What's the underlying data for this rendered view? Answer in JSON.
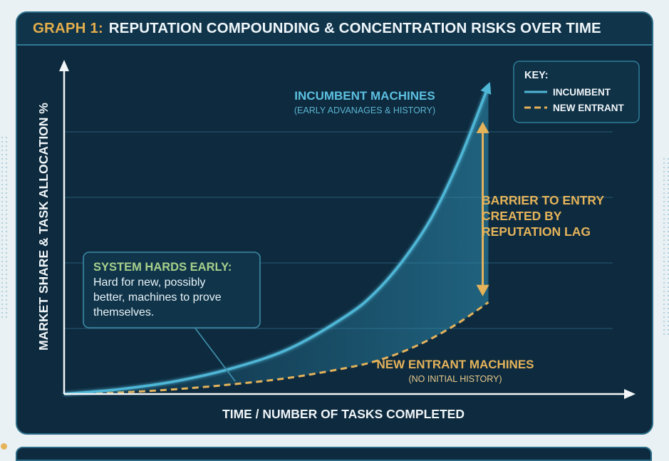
{
  "header": {
    "title_prefix": "GRAPH 1:",
    "title_main": "REPUTATION COMPOUNDING & CONCENTRATION RISKS OVER TIME"
  },
  "colors": {
    "background": "#0d2a3e",
    "incumbent": "#4fb6d6",
    "new_entrant": "#e5b35a",
    "barrier": "#e5b35a",
    "callout_title": "#a6d08a",
    "text": "#e9f3f7"
  },
  "chart_data": {
    "type": "line",
    "title": "REPUTATION COMPOUNDING & CONCENTRATION RISKS OVER TIME",
    "xlabel": "TIME / NUMBER OF TASKS COMPLETED",
    "ylabel": "MARKET SHARE & TASK ALLOCATION %",
    "xlim": [
      0,
      100
    ],
    "ylim": [
      0,
      100
    ],
    "grid": true,
    "legend": {
      "placement": "top-right",
      "title": "KEY:",
      "entries": [
        {
          "label": "INCUMBENT",
          "style": "solid"
        },
        {
          "label": "NEW ENTRANT",
          "style": "dashed"
        }
      ]
    },
    "series": [
      {
        "name": "INCUMBENT",
        "style": "solid",
        "x": [
          0,
          10,
          20,
          30,
          40,
          50,
          55,
          60,
          65,
          70,
          75
        ],
        "y": [
          0,
          1.5,
          4,
          8,
          14,
          24,
          31,
          41,
          54,
          72,
          94
        ]
      },
      {
        "name": "NEW ENTRANT",
        "style": "dashed",
        "x": [
          0,
          10,
          20,
          30,
          40,
          50,
          55,
          60,
          65,
          70,
          75
        ],
        "y": [
          0,
          0.5,
          1.5,
          3,
          5,
          8,
          10,
          13,
          17,
          22,
          28
        ]
      }
    ],
    "annotations": {
      "incumbent_label": {
        "title": "INCUMBENT MACHINES",
        "subtitle": "(EARLY ADVANAGES & HISTORY)"
      },
      "new_entrant_label": {
        "title": "NEW ENTRANT MACHINES",
        "subtitle": "(NO INITIAL HISTORY)"
      },
      "barrier_lines": [
        "BARRIER TO ENTRY",
        "CREATED BY",
        "REPUTATION LAG"
      ],
      "callout": {
        "title": "SYSTEM HARDS EARLY:",
        "body_lines": [
          "Hard for new, possibly",
          "better, machines to prove",
          "themselves."
        ],
        "points_to_x": 30
      },
      "barrier_at_x": 74
    }
  }
}
